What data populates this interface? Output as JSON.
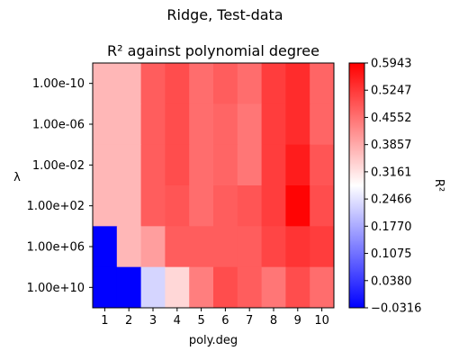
{
  "chart_data": {
    "type": "heatmap",
    "suptitle": "Ridge, Test-data",
    "title": "R² against polynomial degree",
    "xlabel": "poly.deg",
    "ylabel": "λ",
    "x_categories": [
      "1",
      "2",
      "3",
      "4",
      "5",
      "6",
      "7",
      "8",
      "9",
      "10"
    ],
    "y_categories": [
      "1.00e-10",
      "1.00e-06",
      "1.00e-02",
      "1.00e+02",
      "1.00e+06",
      "1.00e+10"
    ],
    "values": [
      [
        0.37,
        0.37,
        0.48,
        0.5,
        0.46,
        0.48,
        0.46,
        0.52,
        0.54,
        0.47
      ],
      [
        0.37,
        0.37,
        0.48,
        0.5,
        0.46,
        0.47,
        0.45,
        0.52,
        0.54,
        0.47
      ],
      [
        0.37,
        0.37,
        0.48,
        0.5,
        0.46,
        0.47,
        0.45,
        0.52,
        0.56,
        0.49
      ],
      [
        0.37,
        0.37,
        0.48,
        0.49,
        0.46,
        0.48,
        0.49,
        0.52,
        0.59,
        0.5
      ],
      [
        -0.03,
        0.37,
        0.4,
        0.48,
        0.48,
        0.48,
        0.48,
        0.51,
        0.53,
        0.52
      ],
      [
        -0.03,
        -0.03,
        0.23,
        0.33,
        0.44,
        0.5,
        0.48,
        0.45,
        0.5,
        0.46
      ]
    ],
    "colorbar": {
      "label": "R²",
      "vmin": -0.0316,
      "vmax": 0.5943,
      "colormap": "bwr",
      "tick_labels": [
        "0.5943",
        "0.5247",
        "0.4552",
        "0.3857",
        "0.3161",
        "0.2466",
        "0.1770",
        "0.1075",
        "0.0380",
        "−0.0316"
      ]
    }
  }
}
